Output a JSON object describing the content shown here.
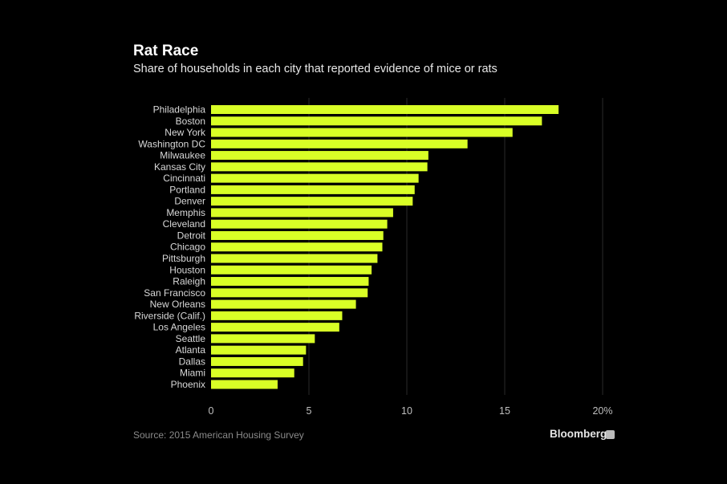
{
  "chart_data": {
    "type": "bar",
    "orientation": "horizontal",
    "title": "Rat Race",
    "subtitle": "Share of households in each city that reported evidence of mice or rats",
    "categories": [
      "Philadelphia",
      "Boston",
      "New York",
      "Washington DC",
      "Milwaukee",
      "Kansas City",
      "Cincinnati",
      "Portland",
      "Denver",
      "Memphis",
      "Cleveland",
      "Detroit",
      "Chicago",
      "Pittsburgh",
      "Houston",
      "Raleigh",
      "San Francisco",
      "New Orleans",
      "Riverside (Calif.)",
      "Los Angeles",
      "Seattle",
      "Atlanta",
      "Dallas",
      "Miami",
      "Phoenix"
    ],
    "values": [
      17.75,
      16.9,
      15.4,
      13.1,
      11.1,
      11.05,
      10.6,
      10.4,
      10.3,
      9.3,
      9.0,
      8.8,
      8.75,
      8.5,
      8.2,
      8.05,
      8.0,
      7.4,
      6.7,
      6.55,
      5.3,
      4.85,
      4.7,
      4.25,
      3.4
    ],
    "xlim": [
      0,
      20
    ],
    "xticks": [
      0,
      5,
      10,
      15,
      20
    ],
    "xtick_labels": [
      "0",
      "5",
      "10",
      "15",
      "20%"
    ],
    "grid": "vertical",
    "bar_color": "#d9ff26",
    "background": "#000000"
  },
  "footer": {
    "source": "Source: 2015 American Housing Survey",
    "brand": "Bloomberg"
  }
}
